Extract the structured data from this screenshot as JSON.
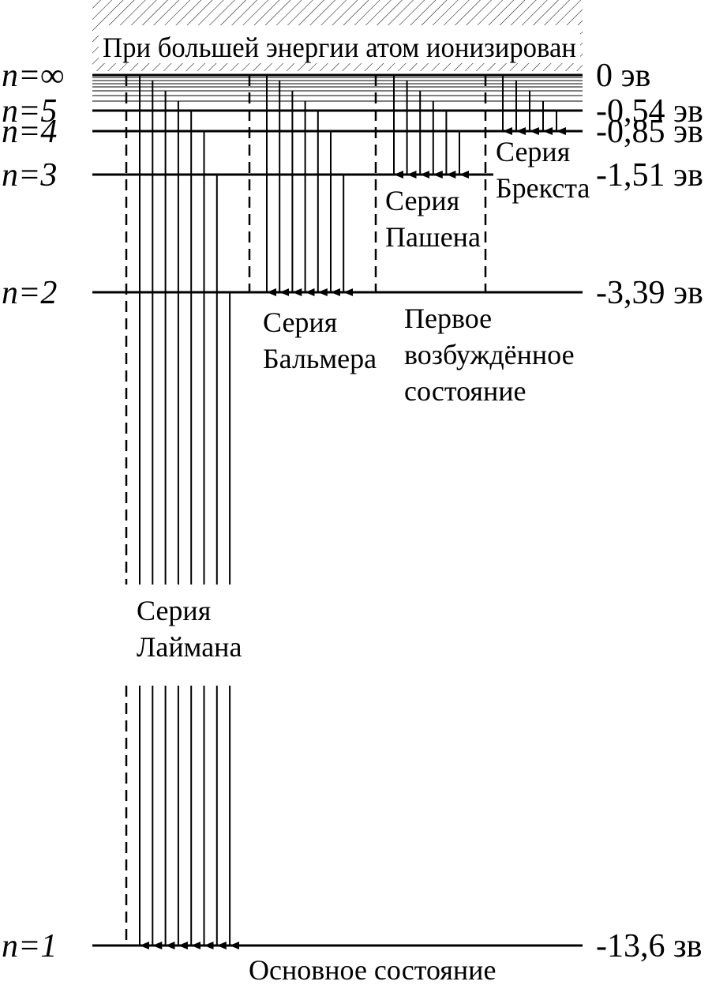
{
  "header": {
    "title": "При большей энергии атом ионизирован"
  },
  "levels": [
    {
      "label": "n=∞",
      "energy": "0 эв"
    },
    {
      "label": "n=5",
      "energy": "-0,54 эв"
    },
    {
      "label": "n=4",
      "energy": "-0,85 эв"
    },
    {
      "label": "n=3",
      "energy": "-1,51 эв"
    },
    {
      "label": "n=2",
      "energy": "-3,39 эв"
    },
    {
      "label": "n=1",
      "energy": "-13,6 зв"
    }
  ],
  "series": [
    {
      "lines": [
        "Серия",
        "Лаймана"
      ]
    },
    {
      "lines": [
        "Серия",
        "Бальмера"
      ]
    },
    {
      "lines": [
        "Серия",
        "Пашена"
      ]
    },
    {
      "lines": [
        "Серия",
        "Брекста"
      ]
    }
  ],
  "notes": {
    "first_excited": [
      "Первое",
      "возбуждённое",
      "состояние"
    ],
    "ground": "Основное состояние"
  }
}
